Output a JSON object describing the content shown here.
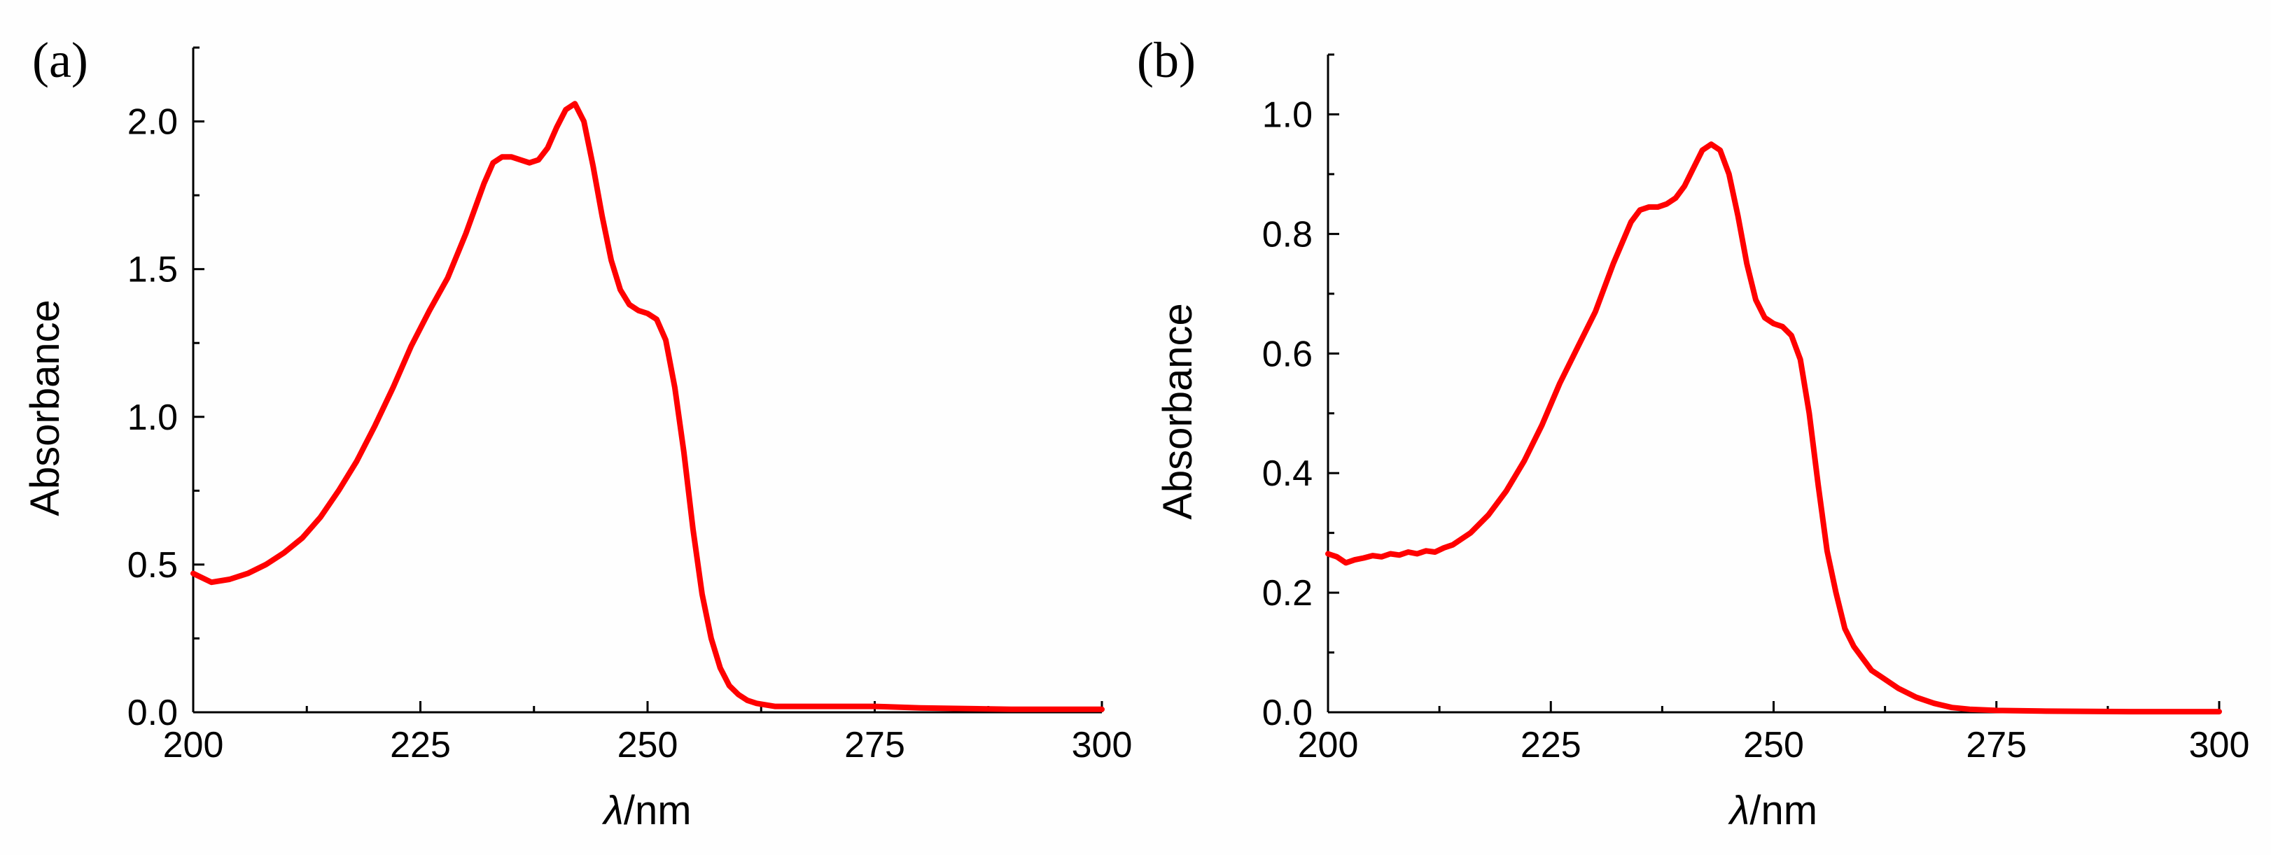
{
  "colors": {
    "series": "#ff0000",
    "axis": "#000000",
    "background": "#fefefe"
  },
  "chart_data": [
    {
      "panel": "(a)",
      "type": "line",
      "xlabel": "λ/nm",
      "xlabel_italic_part": "λ",
      "xlabel_unit_part": "/nm",
      "ylabel": "Absorbance",
      "xlim": [
        200,
        300
      ],
      "ylim": [
        0,
        2.25
      ],
      "xticks": [
        200,
        225,
        250,
        275,
        300
      ],
      "xtick_labels": [
        "200",
        "225",
        "250",
        "275",
        "300"
      ],
      "yticks": [
        0,
        0.5,
        1.0,
        1.5,
        2.0
      ],
      "ytick_labels": [
        "0.0",
        "0.5",
        "1.0",
        "1.5",
        "2.0"
      ],
      "series": [
        {
          "name": "absorbance",
          "x": [
            200,
            202,
            204,
            206,
            208,
            210,
            212,
            214,
            216,
            218,
            220,
            222,
            224,
            226,
            228,
            230,
            232,
            233,
            234,
            235,
            236,
            237,
            238,
            239,
            240,
            241,
            242,
            243,
            244,
            245,
            246,
            247,
            248,
            249,
            250,
            251,
            252,
            253,
            254,
            255,
            256,
            257,
            258,
            259,
            260,
            261,
            262,
            264,
            266,
            270,
            275,
            280,
            290,
            300
          ],
          "y": [
            0.47,
            0.44,
            0.45,
            0.47,
            0.5,
            0.54,
            0.59,
            0.66,
            0.75,
            0.85,
            0.97,
            1.1,
            1.24,
            1.36,
            1.47,
            1.62,
            1.79,
            1.86,
            1.88,
            1.88,
            1.87,
            1.86,
            1.87,
            1.91,
            1.98,
            2.04,
            2.06,
            2.0,
            1.85,
            1.68,
            1.53,
            1.43,
            1.38,
            1.36,
            1.35,
            1.33,
            1.26,
            1.1,
            0.88,
            0.62,
            0.4,
            0.25,
            0.15,
            0.09,
            0.06,
            0.04,
            0.03,
            0.02,
            0.02,
            0.02,
            0.02,
            0.015,
            0.01,
            0.01
          ]
        }
      ]
    },
    {
      "panel": "(b)",
      "type": "line",
      "xlabel": "λ/nm",
      "xlabel_italic_part": "λ",
      "xlabel_unit_part": "/nm",
      "ylabel": "Absorbance",
      "xlim": [
        200,
        300
      ],
      "ylim": [
        0,
        1.1
      ],
      "xticks": [
        200,
        225,
        250,
        275,
        300
      ],
      "xtick_labels": [
        "200",
        "225",
        "250",
        "275",
        "300"
      ],
      "yticks": [
        0,
        0.2,
        0.4,
        0.6,
        0.8,
        1.0
      ],
      "ytick_labels": [
        "0.0",
        "0.2",
        "0.4",
        "0.6",
        "0.8",
        "1.0"
      ],
      "series": [
        {
          "name": "absorbance",
          "x": [
            200,
            201,
            202,
            203,
            204,
            205,
            206,
            207,
            208,
            209,
            210,
            211,
            212,
            213,
            214,
            216,
            218,
            220,
            222,
            224,
            226,
            228,
            230,
            232,
            234,
            235,
            236,
            237,
            238,
            239,
            240,
            241,
            242,
            243,
            244,
            245,
            246,
            247,
            248,
            249,
            250,
            251,
            252,
            253,
            254,
            255,
            256,
            257,
            258,
            259,
            260,
            261,
            262,
            264,
            266,
            268,
            270,
            272,
            275,
            280,
            290,
            300
          ],
          "y": [
            0.265,
            0.26,
            0.25,
            0.255,
            0.258,
            0.262,
            0.26,
            0.265,
            0.263,
            0.268,
            0.265,
            0.27,
            0.268,
            0.275,
            0.28,
            0.3,
            0.33,
            0.37,
            0.42,
            0.48,
            0.55,
            0.61,
            0.67,
            0.75,
            0.82,
            0.84,
            0.845,
            0.845,
            0.85,
            0.86,
            0.88,
            0.91,
            0.94,
            0.95,
            0.94,
            0.9,
            0.83,
            0.75,
            0.69,
            0.66,
            0.65,
            0.645,
            0.63,
            0.59,
            0.5,
            0.38,
            0.27,
            0.2,
            0.14,
            0.11,
            0.09,
            0.07,
            0.06,
            0.04,
            0.025,
            0.015,
            0.008,
            0.005,
            0.003,
            0.002,
            0.001,
            0.001
          ]
        }
      ]
    }
  ]
}
